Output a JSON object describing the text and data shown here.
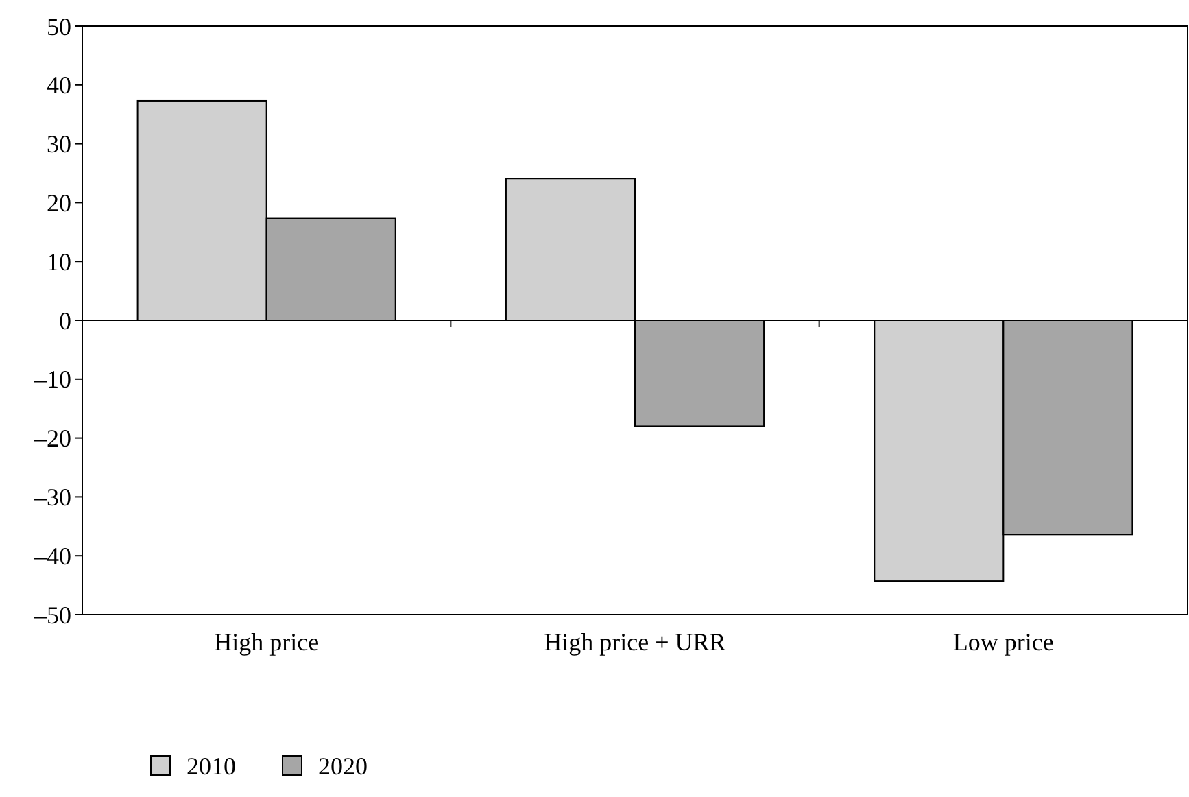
{
  "chart_data": {
    "type": "bar",
    "categories": [
      "High price",
      "High price + URR",
      "Low price"
    ],
    "series": [
      {
        "name": "2010",
        "color": "#d0d0d0",
        "values": [
          37.3,
          24.1,
          -44.3
        ]
      },
      {
        "name": "2020",
        "color": "#a6a6a6",
        "values": [
          17.3,
          -18,
          -36.4
        ]
      }
    ],
    "ylim": [
      -50,
      50
    ],
    "yticks": [
      {
        "value": -50,
        "label": "–50"
      },
      {
        "value": -40,
        "label": "–40"
      },
      {
        "value": -30,
        "label": "–30"
      },
      {
        "value": -20,
        "label": "–20"
      },
      {
        "value": -10,
        "label": "–10"
      },
      0,
      10,
      20,
      30,
      40,
      50
    ],
    "legend": "bottom left"
  }
}
